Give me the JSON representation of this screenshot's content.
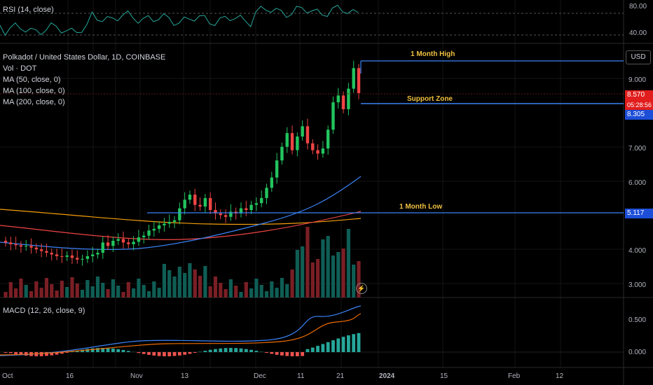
{
  "panels": {
    "rsi_label": "RSI (14, close)",
    "rsi_ticks": [
      "80.00",
      "40.00"
    ],
    "macd_label": "MACD (12, 26, close, 9)",
    "macd_ticks": [
      "0.500",
      "0.000"
    ]
  },
  "main": {
    "symbol": "Polkadot / United States Dollar, 1D, COINBASE",
    "vol_label": "Vol · DOT",
    "ma_labels": [
      "MA (50, close, 0)",
      "MA (100, close, 0)",
      "MA (200, close, 0)"
    ],
    "currency_button": "USD",
    "price_ticks": [
      "9.000",
      "7.000",
      "6.000",
      "4.000",
      "3.000"
    ],
    "levels": {
      "month_high": "1 Month High",
      "support": "Support Zone",
      "month_low": "1 Month Low"
    },
    "current_price": "8.570",
    "countdown": "05:28:56",
    "support_price": "8.305",
    "low_price": "5.117"
  },
  "x_axis": [
    "Oct",
    "16",
    "Nov",
    "13",
    "Dec",
    "11",
    "21",
    "2024",
    "15",
    "Feb",
    "12"
  ],
  "colors": {
    "up": "#22c55e",
    "down": "#ef4444",
    "level_line": "#3b82f6",
    "ma50": "#3b82f6",
    "ma100": "#ef4444",
    "ma200": "#f59e0b",
    "rsi": "#26a69a",
    "macd": "#3b82f6",
    "signal": "#ef6c00"
  },
  "chart_data": {
    "type": "candlestick",
    "x_dates": [
      "2023-10-01",
      "2023-10-16",
      "2023-11-01",
      "2023-11-13",
      "2023-12-01",
      "2023-12-11",
      "2023-12-21",
      "2024-01-01",
      "2024-01-15",
      "2024-02-01",
      "2024-02-12"
    ],
    "closes": [
      4.2,
      4.15,
      4.12,
      4.08,
      4.1,
      4.05,
      4.0,
      3.95,
      3.9,
      3.85,
      3.8,
      3.78,
      3.82,
      3.75,
      3.7,
      3.72,
      3.8,
      3.85,
      3.9,
      4.2,
      4.1,
      4.25,
      4.3,
      4.2,
      4.15,
      4.22,
      4.35,
      4.4,
      4.55,
      4.6,
      4.7,
      4.75,
      4.8,
      4.85,
      5.2,
      5.45,
      5.6,
      5.3,
      5.25,
      5.5,
      5.15,
      5.05,
      5.0,
      4.95,
      5.1,
      5.05,
      5.2,
      5.15,
      5.3,
      5.35,
      5.5,
      5.8,
      6.1,
      6.6,
      7.0,
      7.4,
      6.9,
      7.3,
      7.6,
      7.1,
      6.9,
      6.8,
      6.95,
      7.5,
      8.3,
      8.5,
      8.1,
      8.7,
      9.3,
      8.57
    ],
    "ylim": [
      2.8,
      9.8
    ],
    "levels": {
      "1 Month High": 9.55,
      "Support Zone": 8.305,
      "1 Month Low": 5.117
    },
    "current_price": 8.57
  }
}
